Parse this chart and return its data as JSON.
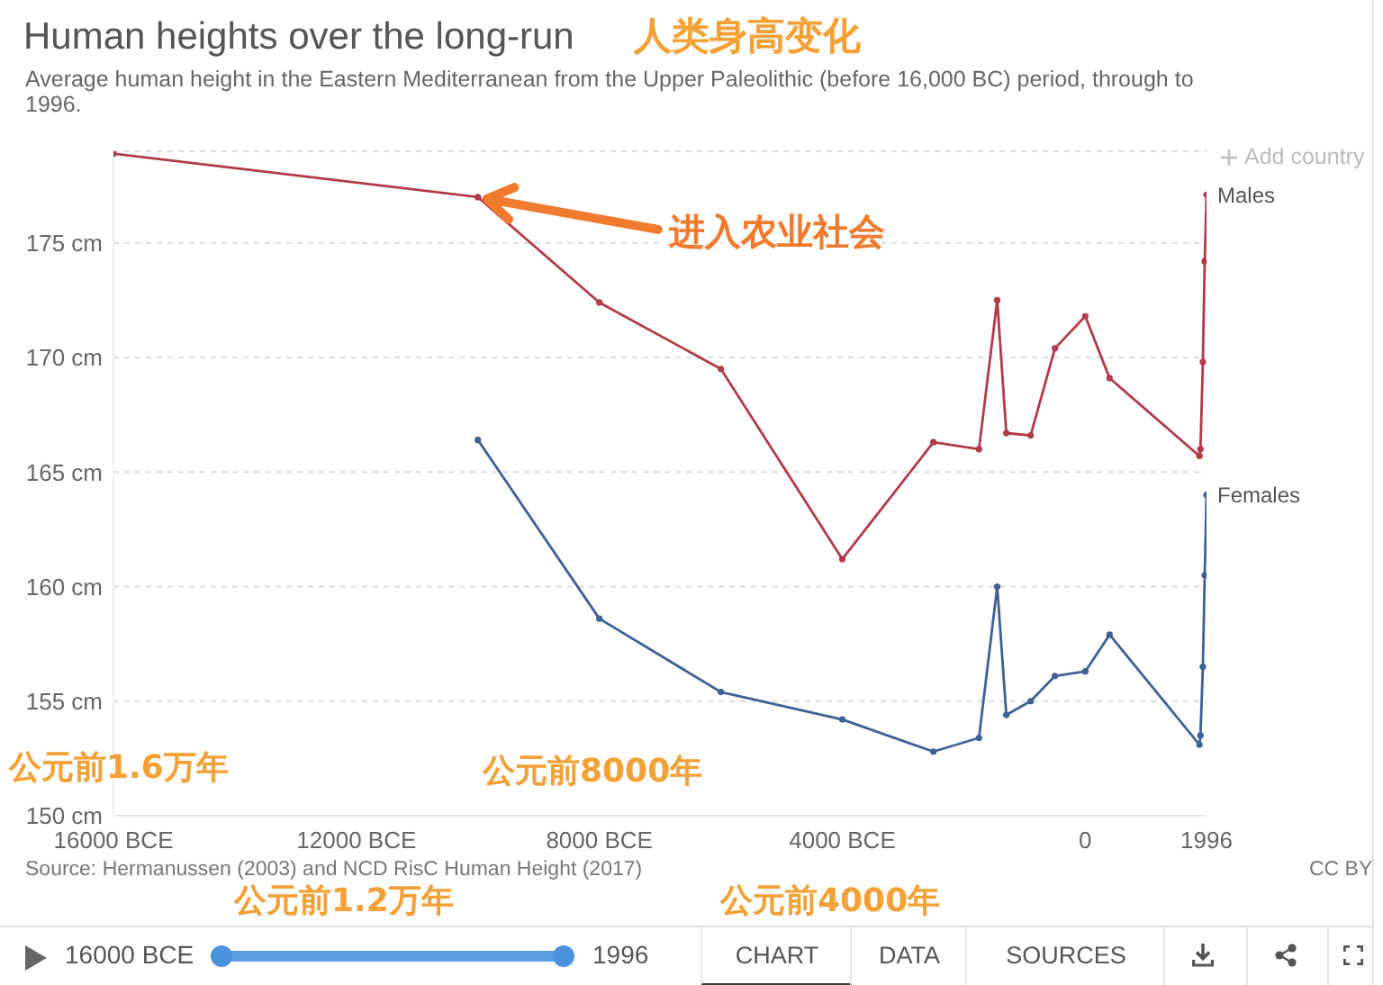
{
  "chart_data": {
    "type": "line",
    "title": "Human heights over the long-run",
    "subtitle": "Average human height in the Eastern Mediterranean from the Upper Paleolithic (before 16,000 BC) period, through to 1996.",
    "x": [
      -16000,
      -10000,
      -8000,
      -6000,
      -4000,
      -2500,
      -1750,
      -1450,
      -1300,
      -900,
      -500,
      0,
      400,
      1880,
      1896,
      1936,
      1966,
      1996
    ],
    "series": [
      {
        "name": "Males",
        "color": "#b03a48",
        "values": [
          178.9,
          177.0,
          172.4,
          169.5,
          161.2,
          166.3,
          166.0,
          172.5,
          166.7,
          166.6,
          170.4,
          171.8,
          169.1,
          165.7,
          166.0,
          169.8,
          174.2,
          177.1
        ]
      },
      {
        "name": "Females",
        "color": "#3e6196",
        "values": [
          null,
          166.4,
          158.6,
          155.4,
          154.2,
          152.8,
          153.4,
          160.0,
          154.4,
          155.0,
          156.1,
          156.3,
          157.9,
          153.1,
          153.5,
          156.5,
          160.5,
          164.0
        ]
      }
    ],
    "xlim": [
      -16000,
      1996
    ],
    "xticks": [
      {
        "value": -16000,
        "label": "16000 BCE"
      },
      {
        "value": -12000,
        "label": "12000 BCE"
      },
      {
        "value": -8000,
        "label": "8000 BCE"
      },
      {
        "value": -4000,
        "label": "4000 BCE"
      },
      0,
      1996
    ],
    "ylim": [
      150,
      179
    ],
    "yticks": [
      {
        "value": 150,
        "label": "150 cm"
      },
      {
        "value": 155,
        "label": "155 cm"
      },
      {
        "value": 160,
        "label": "160 cm"
      },
      {
        "value": 165,
        "label": "165 cm"
      },
      {
        "value": 170,
        "label": "170 cm"
      },
      {
        "value": 175,
        "label": "175 cm"
      }
    ],
    "grid": "y",
    "marker": "circle",
    "annotations": [
      "人类身高变化",
      {
        "text": "进入农业社会",
        "x": -10000,
        "y": 177.0
      },
      "公元前1.6万年",
      "公元前8000年",
      "公元前1.2万年",
      "公元前4000年",
      "Source: Hermanussen (2003) and NCD RisC Human Height (2017)",
      "CC BY",
      "Add country",
      "16000 BCE",
      "1996",
      "CHART",
      "DATA",
      "SOURCES"
    ]
  }
}
